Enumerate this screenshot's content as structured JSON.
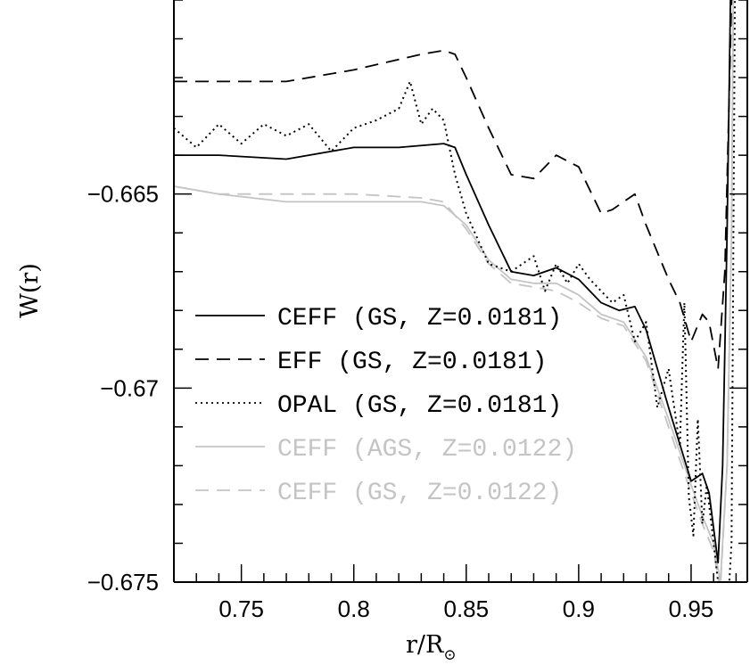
{
  "chart_data": {
    "type": "line",
    "title": "",
    "xlabel": "r/R",
    "xlabel_subscript": "⊙",
    "ylabel": "W(r)",
    "xlim": [
      0.72,
      0.975
    ],
    "ylim": [
      -0.675,
      -0.66
    ],
    "x_ticks": [
      {
        "value": 0.75,
        "label": "0.75"
      },
      {
        "value": 0.8,
        "label": "0.8"
      },
      {
        "value": 0.85,
        "label": "0.85"
      },
      {
        "value": 0.9,
        "label": "0.9"
      },
      {
        "value": 0.95,
        "label": "0.95"
      }
    ],
    "y_ticks": [
      {
        "value": -0.665,
        "label": "−0.665"
      },
      {
        "value": -0.67,
        "label": "−0.67"
      },
      {
        "value": -0.675,
        "label": "−0.675"
      }
    ],
    "grid": false,
    "legend_position": "lower-left",
    "series": [
      {
        "name": "CEFF (GS, Z=0.0181)",
        "color": "#000000",
        "dash": "solid",
        "x": [
          0.72,
          0.74,
          0.77,
          0.8,
          0.82,
          0.84,
          0.845,
          0.85,
          0.86,
          0.87,
          0.88,
          0.89,
          0.9,
          0.91,
          0.918,
          0.925,
          0.93,
          0.94,
          0.95,
          0.955,
          0.958,
          0.962,
          0.964,
          0.966,
          0.97
        ],
        "y": [
          -0.664,
          -0.664,
          -0.6641,
          -0.6638,
          -0.6638,
          -0.6637,
          -0.6638,
          -0.6645,
          -0.6658,
          -0.667,
          -0.6671,
          -0.6669,
          -0.6672,
          -0.6678,
          -0.668,
          -0.6679,
          -0.6685,
          -0.6705,
          -0.6724,
          -0.6722,
          -0.6727,
          -0.6745,
          -0.672,
          -0.666,
          -0.65
        ]
      },
      {
        "name": "EFF (GS, Z=0.0181)",
        "color": "#000000",
        "dash": "dashed",
        "x": [
          0.72,
          0.74,
          0.77,
          0.8,
          0.83,
          0.84,
          0.845,
          0.85,
          0.86,
          0.87,
          0.88,
          0.89,
          0.9,
          0.91,
          0.915,
          0.925,
          0.93,
          0.94,
          0.945,
          0.95,
          0.955,
          0.958,
          0.962,
          0.965,
          0.968
        ],
        "y": [
          -0.6621,
          -0.6621,
          -0.6621,
          -0.6618,
          -0.6614,
          -0.6613,
          -0.6614,
          -0.662,
          -0.6633,
          -0.6645,
          -0.6646,
          -0.664,
          -0.6643,
          -0.6655,
          -0.6654,
          -0.665,
          -0.6658,
          -0.6672,
          -0.6678,
          -0.6688,
          -0.6681,
          -0.6683,
          -0.6695,
          -0.667,
          -0.66
        ]
      },
      {
        "name": "OPAL (GS, Z=0.0181)",
        "color": "#000000",
        "dash": "dotted",
        "x": [
          0.72,
          0.73,
          0.74,
          0.75,
          0.76,
          0.77,
          0.78,
          0.79,
          0.8,
          0.81,
          0.82,
          0.825,
          0.83,
          0.835,
          0.84,
          0.845,
          0.85,
          0.86,
          0.87,
          0.88,
          0.885,
          0.89,
          0.895,
          0.9,
          0.905,
          0.91,
          0.915,
          0.92,
          0.925,
          0.93,
          0.935,
          0.94,
          0.945,
          0.947,
          0.949,
          0.951,
          0.953,
          0.955,
          0.957,
          0.96,
          0.963,
          0.966,
          0.968,
          0.97
        ],
        "y": [
          -0.6633,
          -0.6638,
          -0.6632,
          -0.6637,
          -0.6632,
          -0.6635,
          -0.6632,
          -0.6639,
          -0.6633,
          -0.6631,
          -0.6628,
          -0.6621,
          -0.6632,
          -0.6628,
          -0.6631,
          -0.6645,
          -0.6655,
          -0.6668,
          -0.667,
          -0.6666,
          -0.6675,
          -0.6668,
          -0.6673,
          -0.6668,
          -0.6672,
          -0.6675,
          -0.6678,
          -0.6676,
          -0.6688,
          -0.6683,
          -0.6705,
          -0.6695,
          -0.6715,
          -0.6678,
          -0.6728,
          -0.6738,
          -0.6708,
          -0.6735,
          -0.6725,
          -0.674,
          -0.6755,
          -0.676,
          -0.674,
          -0.655
        ]
      },
      {
        "name": "CEFF (AGS, Z=0.0122)",
        "color": "#c4c4c4",
        "dash": "solid",
        "x": [
          0.72,
          0.74,
          0.77,
          0.8,
          0.83,
          0.84,
          0.85,
          0.86,
          0.87,
          0.88,
          0.89,
          0.9,
          0.91,
          0.92,
          0.93,
          0.94,
          0.95,
          0.955,
          0.96,
          0.963,
          0.966,
          0.968,
          0.97
        ],
        "y": [
          -0.6648,
          -0.665,
          -0.6652,
          -0.6652,
          -0.6652,
          -0.6653,
          -0.6658,
          -0.6667,
          -0.6672,
          -0.6673,
          -0.6673,
          -0.6676,
          -0.6681,
          -0.6683,
          -0.6692,
          -0.6708,
          -0.6725,
          -0.6733,
          -0.674,
          -0.675,
          -0.672,
          -0.666,
          -0.65
        ]
      },
      {
        "name": "CEFF (GS, Z=0.0122)",
        "color": "#c4c4c4",
        "dash": "dashed",
        "x": [
          0.72,
          0.74,
          0.77,
          0.8,
          0.83,
          0.84,
          0.85,
          0.86,
          0.87,
          0.88,
          0.89,
          0.9,
          0.91,
          0.92,
          0.93,
          0.94,
          0.95,
          0.955,
          0.96,
          0.963,
          0.966,
          0.968,
          0.97
        ],
        "y": [
          -0.6648,
          -0.665,
          -0.665,
          -0.665,
          -0.6651,
          -0.6652,
          -0.6659,
          -0.6668,
          -0.6673,
          -0.6674,
          -0.6675,
          -0.6678,
          -0.6682,
          -0.6684,
          -0.6693,
          -0.671,
          -0.6727,
          -0.6735,
          -0.6742,
          -0.6752,
          -0.672,
          -0.666,
          -0.65
        ]
      }
    ]
  }
}
